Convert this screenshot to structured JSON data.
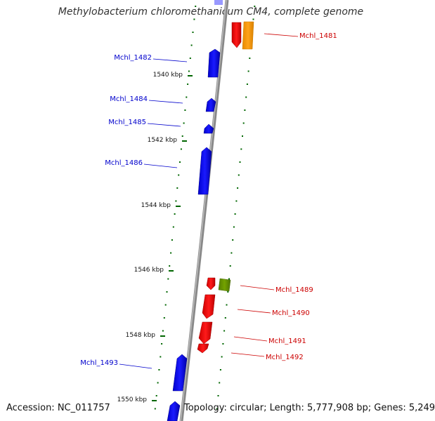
{
  "title": "Methylobacterium chloromethanicum CM4, complete genome",
  "accession_text": "Accession: NC_011757",
  "topology_text": "Topology: circular; Length: 5,777,908 bp; Genes: 5,249",
  "colors": {
    "forward_gene": "#0000ff",
    "reverse_gene": "#ff0000",
    "other_gene_orange": "#ff9900",
    "other_gene_olive": "#669900",
    "tick": "#006600",
    "backbone": "#888888"
  },
  "scale_ticks": [
    {
      "label": "1540 kbp"
    },
    {
      "label": "1542 kbp"
    },
    {
      "label": "1544 kbp"
    },
    {
      "label": "1546 kbp"
    },
    {
      "label": "1548 kbp"
    },
    {
      "label": "1550 kbp"
    }
  ],
  "genes": [
    {
      "label": "Mchl_1481",
      "strand": "reverse"
    },
    {
      "label": "Mchl_1482",
      "strand": "forward"
    },
    {
      "label": "Mchl_1484",
      "strand": "forward"
    },
    {
      "label": "Mchl_1485",
      "strand": "forward"
    },
    {
      "label": "Mchl_1486",
      "strand": "forward"
    },
    {
      "label": "Mchl_1489",
      "strand": "reverse"
    },
    {
      "label": "Mchl_1490",
      "strand": "reverse"
    },
    {
      "label": "Mchl_1491",
      "strand": "reverse"
    },
    {
      "label": "Mchl_1492",
      "strand": "reverse"
    },
    {
      "label": "Mchl_1493",
      "strand": "forward"
    }
  ]
}
